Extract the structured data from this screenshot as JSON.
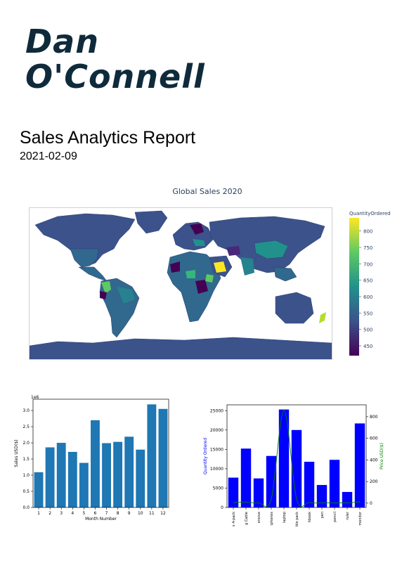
{
  "header": {
    "author_line1": "Dan",
    "author_line2": "O'Connell",
    "title": "Sales Analytics Report",
    "date": "2021-02-09"
  },
  "map": {
    "title": "Global Sales 2020",
    "colorbar_title": "QuantityOrdered",
    "colorbar_ticks": [
      450,
      500,
      550,
      600,
      650,
      700,
      750,
      800
    ],
    "colorbar_range": [
      420,
      840
    ],
    "colorscale": [
      "#440154",
      "#3b528b",
      "#21918c",
      "#5ec962",
      "#fde725"
    ]
  },
  "chart_data": [
    {
      "type": "bar",
      "categories": [
        "1",
        "2",
        "3",
        "4",
        "5",
        "6",
        "7",
        "8",
        "9",
        "10",
        "11",
        "12"
      ],
      "values": [
        1.09,
        1.86,
        2.0,
        1.72,
        1.38,
        2.7,
        1.99,
        2.03,
        2.19,
        1.79,
        3.19,
        3.05
      ],
      "scale_label": "1e6",
      "xlabel": "Month Number",
      "ylabel": "Sales USD($)",
      "ylim": [
        0,
        3.35
      ],
      "yticks": [
        "0.0",
        "0.5",
        "1.0",
        "1.5",
        "2.0",
        "2.5",
        "3.0"
      ],
      "bar_color": "#1f77b4",
      "grid": false
    },
    {
      "type": "bar",
      "categories": [
        "s 4-pack",
        "g Cable",
        "ensive",
        "iphones",
        "laptop",
        "ble pack",
        "hbook",
        "pen",
        "pencil",
        "ruler",
        "monitor"
      ],
      "values": [
        7700,
        15200,
        7500,
        13300,
        25300,
        20000,
        11800,
        5800,
        12300,
        4000,
        21700
      ],
      "line_values": [
        5,
        10,
        2,
        40,
        860,
        40,
        5,
        2,
        3,
        2,
        12
      ],
      "ylabel": "Quantity Ordered",
      "y2label": "Price USD($)",
      "ylim": [
        0,
        26500
      ],
      "y2lim": [
        -40,
        910
      ],
      "yticks": [
        "0",
        "5000",
        "10000",
        "15000",
        "20000",
        "25000"
      ],
      "y2ticks": [
        "0",
        "200",
        "400",
        "600",
        "800"
      ],
      "bar_color": "#0000ff",
      "line_color": "#008000",
      "ylabel_color": "#0000ff",
      "y2label_color": "#008000",
      "grid": false
    }
  ]
}
